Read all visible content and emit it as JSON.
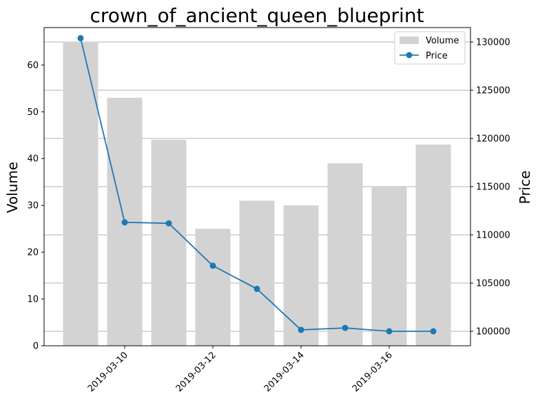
{
  "chart_data": {
    "type": "bar+line",
    "title": "crown_of_ancient_queen_blueprint",
    "ylabel_left": "Volume",
    "ylabel_right": "Price",
    "dates": [
      "2019-03-09",
      "2019-03-10",
      "2019-03-11",
      "2019-03-12",
      "2019-03-13",
      "2019-03-14",
      "2019-03-15",
      "2019-03-16",
      "2019-03-17"
    ],
    "x_tick_labels": [
      "2019-03-10",
      "2019-03-12",
      "2019-03-14",
      "2019-03-16"
    ],
    "series": [
      {
        "name": "Volume",
        "kind": "bar",
        "axis": "left",
        "color": "#d3d3d3",
        "values": [
          65,
          53,
          44,
          25,
          31,
          30,
          39,
          34,
          43
        ]
      },
      {
        "name": "Price",
        "kind": "line",
        "axis": "right",
        "color": "#1f77b4",
        "values": [
          130400,
          111300,
          111200,
          106800,
          104400,
          100150,
          100350,
          100000,
          100000
        ]
      }
    ],
    "ylim_left": [
      0,
      68
    ],
    "ylim_right": [
      98500,
      131500
    ],
    "yticks_left": [
      0,
      10,
      20,
      30,
      40,
      50,
      60
    ],
    "yticks_right": [
      100000,
      105000,
      110000,
      115000,
      120000,
      125000,
      130000
    ],
    "grid": "horizontal, right axis",
    "legend_location": "upper right"
  }
}
